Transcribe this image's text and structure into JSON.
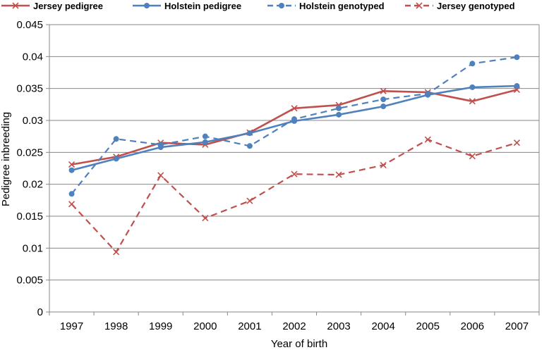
{
  "chart_data": {
    "type": "line",
    "xlabel": "Year of birth",
    "ylabel": "Pedigree inbreeding",
    "categories": [
      "1997",
      "1998",
      "1999",
      "2000",
      "2001",
      "2002",
      "2003",
      "2004",
      "2005",
      "2006",
      "2007"
    ],
    "ylim": [
      0,
      0.045
    ],
    "yticks": [
      "0",
      "0.005",
      "0.01",
      "0.015",
      "0.02",
      "0.025",
      "0.03",
      "0.035",
      "0.04",
      "0.045"
    ],
    "grid": true,
    "legend_position": "top",
    "series": [
      {
        "name": "Jersey pedigree",
        "color": "#c0504d",
        "marker": "x",
        "dash": false,
        "values": [
          0.0231,
          0.0243,
          0.0265,
          0.0262,
          0.0281,
          0.0319,
          0.0324,
          0.0346,
          0.0344,
          0.033,
          0.0348
        ]
      },
      {
        "name": "Holstein pedigree",
        "color": "#4f81bd",
        "marker": "circle",
        "dash": false,
        "values": [
          0.0222,
          0.024,
          0.0258,
          0.0266,
          0.028,
          0.0299,
          0.0309,
          0.0322,
          0.034,
          0.0352,
          0.0354
        ]
      },
      {
        "name": "Holstein genotyped",
        "color": "#4f81bd",
        "marker": "circle",
        "dash": true,
        "values": [
          0.0185,
          0.0271,
          0.0262,
          0.0275,
          0.026,
          0.0302,
          0.0319,
          0.0333,
          0.0342,
          0.0389,
          0.0399
        ]
      },
      {
        "name": "Jersey genotyped",
        "color": "#c0504d",
        "marker": "x",
        "dash": true,
        "values": [
          0.0169,
          0.0094,
          0.0214,
          0.0147,
          0.0174,
          0.0216,
          0.0215,
          0.023,
          0.027,
          0.0244,
          0.0265
        ]
      }
    ]
  }
}
